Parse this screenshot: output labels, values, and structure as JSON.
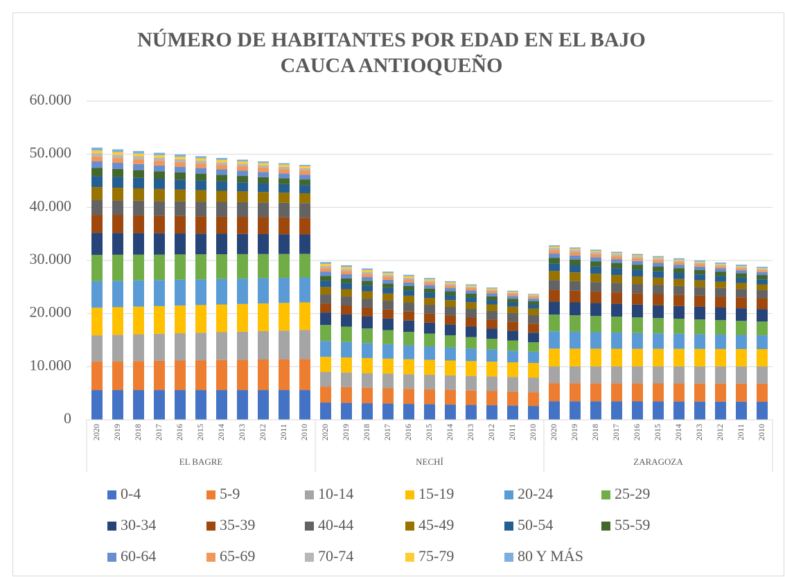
{
  "chart_data": {
    "type": "stacked_bar",
    "title": [
      "NÚMERO DE HABITANTES POR EDAD EN EL BAJO",
      "CAUCA ANTIOQUEÑO"
    ],
    "groups": [
      "EL BAGRE",
      "NECHÍ",
      "ZARAGOZA"
    ],
    "categories": [
      "2020",
      "2019",
      "2018",
      "2017",
      "2016",
      "2015",
      "2014",
      "2013",
      "2012",
      "2011",
      "2010",
      "2020",
      "2019",
      "2018",
      "2017",
      "2016",
      "2015",
      "2014",
      "2013",
      "2012",
      "2011",
      "2010",
      "2020",
      "2019",
      "2018",
      "2017",
      "2016",
      "2015",
      "2014",
      "2013",
      "2012",
      "2011",
      "2010"
    ],
    "ylim": [
      0,
      60000
    ],
    "yticks": [
      0,
      {
        "value": 10000,
        "label": "10.000"
      },
      {
        "value": 20000,
        "label": "20.000"
      },
      {
        "value": 30000,
        "label": "30.000"
      },
      {
        "value": 40000,
        "label": "40.000"
      },
      {
        "value": 50000,
        "label": "50.000"
      },
      {
        "value": 60000,
        "label": "60.000"
      }
    ],
    "grid": true,
    "legend": "bottom",
    "series": [
      {
        "name": "0-4",
        "color": "#4472C4",
        "values": [
          5600,
          5600,
          5600,
          5600,
          5600,
          5600,
          5600,
          5600,
          5600,
          5600,
          5600,
          3250,
          3185,
          3120,
          3055,
          2990,
          2925,
          2860,
          2795,
          2730,
          2665,
          2600,
          3500,
          3490,
          3480,
          3470,
          3460,
          3450,
          3440,
          3430,
          3420,
          3410,
          3400
        ]
      },
      {
        "name": "5-9",
        "color": "#ED7D31",
        "values": [
          5350,
          5400,
          5450,
          5500,
          5550,
          5600,
          5650,
          5700,
          5750,
          5800,
          5850,
          3000,
          2960,
          2920,
          2880,
          2840,
          2800,
          2760,
          2720,
          2680,
          2640,
          2600,
          3400,
          3400,
          3400,
          3400,
          3400,
          3400,
          3400,
          3400,
          3400,
          3400,
          3400
        ]
      },
      {
        "name": "10-14",
        "color": "#A5A5A5",
        "values": [
          4950,
          5000,
          5050,
          5100,
          5150,
          5200,
          5250,
          5300,
          5350,
          5400,
          5450,
          2750,
          2750,
          2750,
          2750,
          2750,
          2750,
          2750,
          2750,
          2750,
          2750,
          2750,
          3150,
          3160,
          3170,
          3180,
          3190,
          3200,
          3210,
          3220,
          3230,
          3240,
          3250
        ]
      },
      {
        "name": "15-19",
        "color": "#FFC000",
        "values": [
          5200,
          5200,
          5200,
          5200,
          5200,
          5200,
          5200,
          5200,
          5200,
          5200,
          5200,
          2850,
          2840,
          2830,
          2820,
          2810,
          2800,
          2790,
          2780,
          2770,
          2760,
          2750,
          3350,
          3340,
          3330,
          3320,
          3310,
          3300,
          3290,
          3280,
          3270,
          3260,
          3250
        ]
      },
      {
        "name": "20-24",
        "color": "#5B9BD5",
        "values": [
          5000,
          4970,
          4940,
          4910,
          4880,
          4850,
          4820,
          4790,
          4760,
          4730,
          4700,
          3000,
          2910,
          2820,
          2730,
          2640,
          2550,
          2460,
          2370,
          2280,
          2190,
          2100,
          3250,
          3185,
          3120,
          3055,
          2990,
          2925,
          2860,
          2795,
          2730,
          2665,
          2600
        ]
      },
      {
        "name": "25-29",
        "color": "#70AD47",
        "values": [
          4950,
          4900,
          4850,
          4800,
          4750,
          4700,
          4650,
          4600,
          4550,
          4500,
          4450,
          3000,
          2880,
          2760,
          2640,
          2520,
          2400,
          2280,
          2160,
          2040,
          1920,
          1800,
          3150,
          3095,
          3040,
          2985,
          2930,
          2875,
          2820,
          2765,
          2710,
          2655,
          2600
        ]
      },
      {
        "name": "30-34",
        "color": "#264478",
        "values": [
          4150,
          4100,
          4050,
          4000,
          3950,
          3900,
          3850,
          3800,
          3750,
          3700,
          3650,
          2350,
          2295,
          2240,
          2185,
          2130,
          2075,
          2020,
          1965,
          1910,
          1855,
          1800,
          2450,
          2440,
          2430,
          2420,
          2410,
          2400,
          2390,
          2380,
          2370,
          2360,
          2350
        ]
      },
      {
        "name": "35-39",
        "color": "#9E480E",
        "values": [
          3400,
          3375,
          3350,
          3325,
          3300,
          3275,
          3250,
          3225,
          3200,
          3175,
          3150,
          1700,
          1700,
          1700,
          1700,
          1700,
          1700,
          1700,
          1700,
          1700,
          1700,
          1700,
          2200,
          2185,
          2170,
          2155,
          2140,
          2125,
          2110,
          2095,
          2080,
          2065,
          2050
        ]
      },
      {
        "name": "40-44",
        "color": "#636363",
        "values": [
          2750,
          2750,
          2750,
          2750,
          2750,
          2750,
          2750,
          2750,
          2750,
          2750,
          2750,
          1700,
          1690,
          1680,
          1670,
          1660,
          1650,
          1640,
          1630,
          1620,
          1610,
          1600,
          1850,
          1820,
          1790,
          1760,
          1730,
          1700,
          1670,
          1640,
          1610,
          1580,
          1550
        ]
      },
      {
        "name": "45-49",
        "color": "#997300",
        "values": [
          2450,
          2390,
          2330,
          2270,
          2210,
          2150,
          2090,
          2030,
          1970,
          1910,
          1850,
          1400,
          1380,
          1360,
          1340,
          1320,
          1300,
          1280,
          1260,
          1240,
          1220,
          1200,
          1700,
          1635,
          1570,
          1505,
          1440,
          1375,
          1310,
          1245,
          1180,
          1115,
          1050
        ]
      },
      {
        "name": "50-54",
        "color": "#255E91",
        "values": [
          2100,
          2045,
          1990,
          1935,
          1880,
          1825,
          1770,
          1715,
          1660,
          1605,
          1550,
          1200,
          1155,
          1110,
          1065,
          1020,
          975,
          930,
          885,
          840,
          795,
          750,
          1450,
          1400,
          1350,
          1300,
          1250,
          1200,
          1150,
          1100,
          1050,
          1000,
          950
        ]
      },
      {
        "name": "55-59",
        "color": "#43682B",
        "values": [
          1550,
          1500,
          1450,
          1400,
          1350,
          1300,
          1250,
          1200,
          1150,
          1100,
          1050,
          900,
          875,
          850,
          825,
          800,
          775,
          750,
          725,
          700,
          675,
          650,
          1050,
          1025,
          1000,
          975,
          950,
          925,
          900,
          875,
          850,
          825,
          800
        ]
      },
      {
        "name": "60-64",
        "color": "#698ED0",
        "values": [
          1200,
          1170,
          1140,
          1110,
          1080,
          1050,
          1020,
          990,
          960,
          930,
          900,
          800,
          770,
          740,
          710,
          680,
          650,
          620,
          590,
          560,
          530,
          500,
          800,
          775,
          750,
          725,
          700,
          675,
          650,
          625,
          600,
          575,
          550
        ]
      },
      {
        "name": "65-69",
        "color": "#F1975A",
        "values": [
          900,
          890,
          880,
          870,
          860,
          850,
          840,
          830,
          820,
          810,
          800,
          650,
          625,
          600,
          575,
          550,
          525,
          500,
          475,
          450,
          425,
          400,
          650,
          620,
          590,
          560,
          530,
          500,
          470,
          440,
          410,
          380,
          350
        ]
      },
      {
        "name": "70-74",
        "color": "#B7B7B7",
        "values": [
          650,
          625,
          600,
          575,
          550,
          525,
          500,
          475,
          450,
          425,
          400,
          400,
          380,
          360,
          340,
          320,
          300,
          280,
          260,
          240,
          220,
          200,
          400,
          385,
          370,
          355,
          340,
          325,
          310,
          295,
          280,
          265,
          250
        ]
      },
      {
        "name": "75-79",
        "color": "#FFCD33",
        "values": [
          500,
          490,
          480,
          470,
          460,
          450,
          440,
          430,
          420,
          410,
          400,
          400,
          375,
          350,
          325,
          300,
          275,
          250,
          225,
          200,
          175,
          150,
          250,
          240,
          230,
          220,
          210,
          200,
          190,
          180,
          170,
          160,
          150
        ]
      },
      {
        "name": "80 Y MÁS",
        "color": "#7CAFDD",
        "values": [
          550,
          520,
          490,
          460,
          430,
          400,
          370,
          340,
          310,
          280,
          250,
          350,
          330,
          310,
          290,
          270,
          250,
          230,
          210,
          190,
          170,
          150,
          250,
          250,
          250,
          250,
          250,
          250,
          250,
          250,
          250,
          250,
          250
        ]
      }
    ]
  }
}
